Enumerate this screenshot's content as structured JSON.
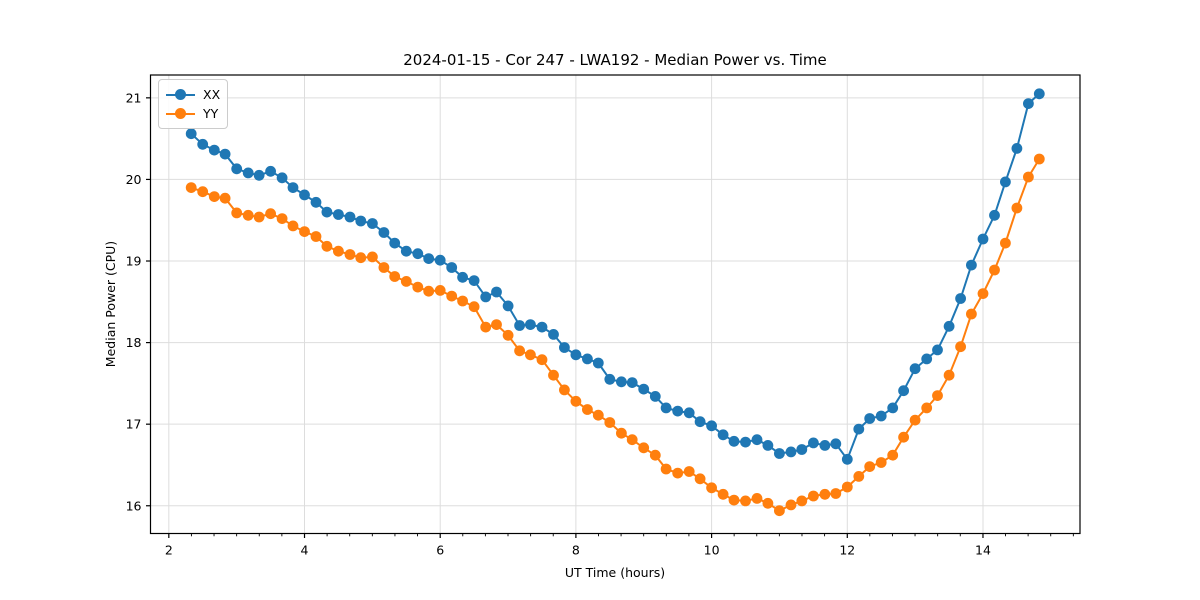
{
  "chart_data": {
    "type": "line",
    "title": "2024-01-15 - Cor 247 - LWA192 - Median Power vs. Time",
    "xlabel": "UT Time (hours)",
    "ylabel": "Median Power (CPU)",
    "xlim": [
      1.73,
      15.43
    ],
    "ylim": [
      15.66,
      21.28
    ],
    "xticks": [
      2,
      4,
      6,
      8,
      10,
      12,
      14
    ],
    "yticks": [
      16,
      17,
      18,
      19,
      20,
      21
    ],
    "x_minor_tick_step": 0.3333,
    "grid": true,
    "legend_position": "upper-left",
    "background_color": "#ffffff",
    "grid_color": "#dddddd",
    "x": [
      2.33,
      2.5,
      2.67,
      2.83,
      3.0,
      3.17,
      3.33,
      3.5,
      3.67,
      3.83,
      4.0,
      4.17,
      4.33,
      4.5,
      4.67,
      4.83,
      5.0,
      5.17,
      5.33,
      5.5,
      5.67,
      5.83,
      6.0,
      6.17,
      6.33,
      6.5,
      6.67,
      6.83,
      7.0,
      7.17,
      7.33,
      7.5,
      7.67,
      7.83,
      8.0,
      8.17,
      8.33,
      8.5,
      8.67,
      8.83,
      9.0,
      9.17,
      9.33,
      9.5,
      9.67,
      9.83,
      10.0,
      10.17,
      10.33,
      10.5,
      10.67,
      10.83,
      11.0,
      11.17,
      11.33,
      11.5,
      11.67,
      11.83,
      12.0,
      12.17,
      12.33,
      12.5,
      12.67,
      12.83,
      13.0,
      13.17,
      13.33,
      13.5,
      13.67,
      13.83,
      14.0,
      14.17,
      14.33,
      14.5,
      14.67,
      14.83
    ],
    "series": [
      {
        "name": "XX",
        "color": "#1f77b4",
        "values": [
          20.56,
          20.43,
          20.36,
          20.31,
          20.13,
          20.08,
          20.05,
          20.1,
          20.02,
          19.9,
          19.81,
          19.72,
          19.6,
          19.57,
          19.54,
          19.49,
          19.46,
          19.35,
          19.22,
          19.12,
          19.09,
          19.03,
          19.01,
          18.92,
          18.8,
          18.76,
          18.56,
          18.62,
          18.45,
          18.21,
          18.22,
          18.19,
          18.1,
          17.94,
          17.85,
          17.8,
          17.75,
          17.55,
          17.52,
          17.51,
          17.43,
          17.34,
          17.2,
          17.16,
          17.14,
          17.03,
          16.98,
          16.87,
          16.79,
          16.78,
          16.81,
          16.74,
          16.64,
          16.66,
          16.69,
          16.77,
          16.74,
          16.76,
          16.57,
          16.94,
          17.07,
          17.1,
          17.2,
          17.41,
          17.68,
          17.8,
          17.91,
          18.2,
          18.54,
          18.95,
          19.27,
          19.56,
          19.97,
          20.38,
          20.93,
          21.05
        ]
      },
      {
        "name": "YY",
        "color": "#ff7f0e",
        "values": [
          19.9,
          19.85,
          19.79,
          19.77,
          19.59,
          19.56,
          19.54,
          19.58,
          19.52,
          19.43,
          19.36,
          19.3,
          19.18,
          19.12,
          19.08,
          19.04,
          19.05,
          18.92,
          18.81,
          18.75,
          18.68,
          18.63,
          18.64,
          18.57,
          18.51,
          18.44,
          18.19,
          18.22,
          18.09,
          17.9,
          17.85,
          17.79,
          17.6,
          17.42,
          17.28,
          17.18,
          17.11,
          17.02,
          16.89,
          16.81,
          16.71,
          16.62,
          16.45,
          16.4,
          16.42,
          16.33,
          16.22,
          16.14,
          16.07,
          16.06,
          16.09,
          16.03,
          15.94,
          16.01,
          16.06,
          16.12,
          16.14,
          16.15,
          16.23,
          16.36,
          16.48,
          16.53,
          16.62,
          16.84,
          17.05,
          17.2,
          17.35,
          17.6,
          17.95,
          18.35,
          18.6,
          18.89,
          19.22,
          19.65,
          20.03,
          20.25
        ]
      }
    ]
  }
}
